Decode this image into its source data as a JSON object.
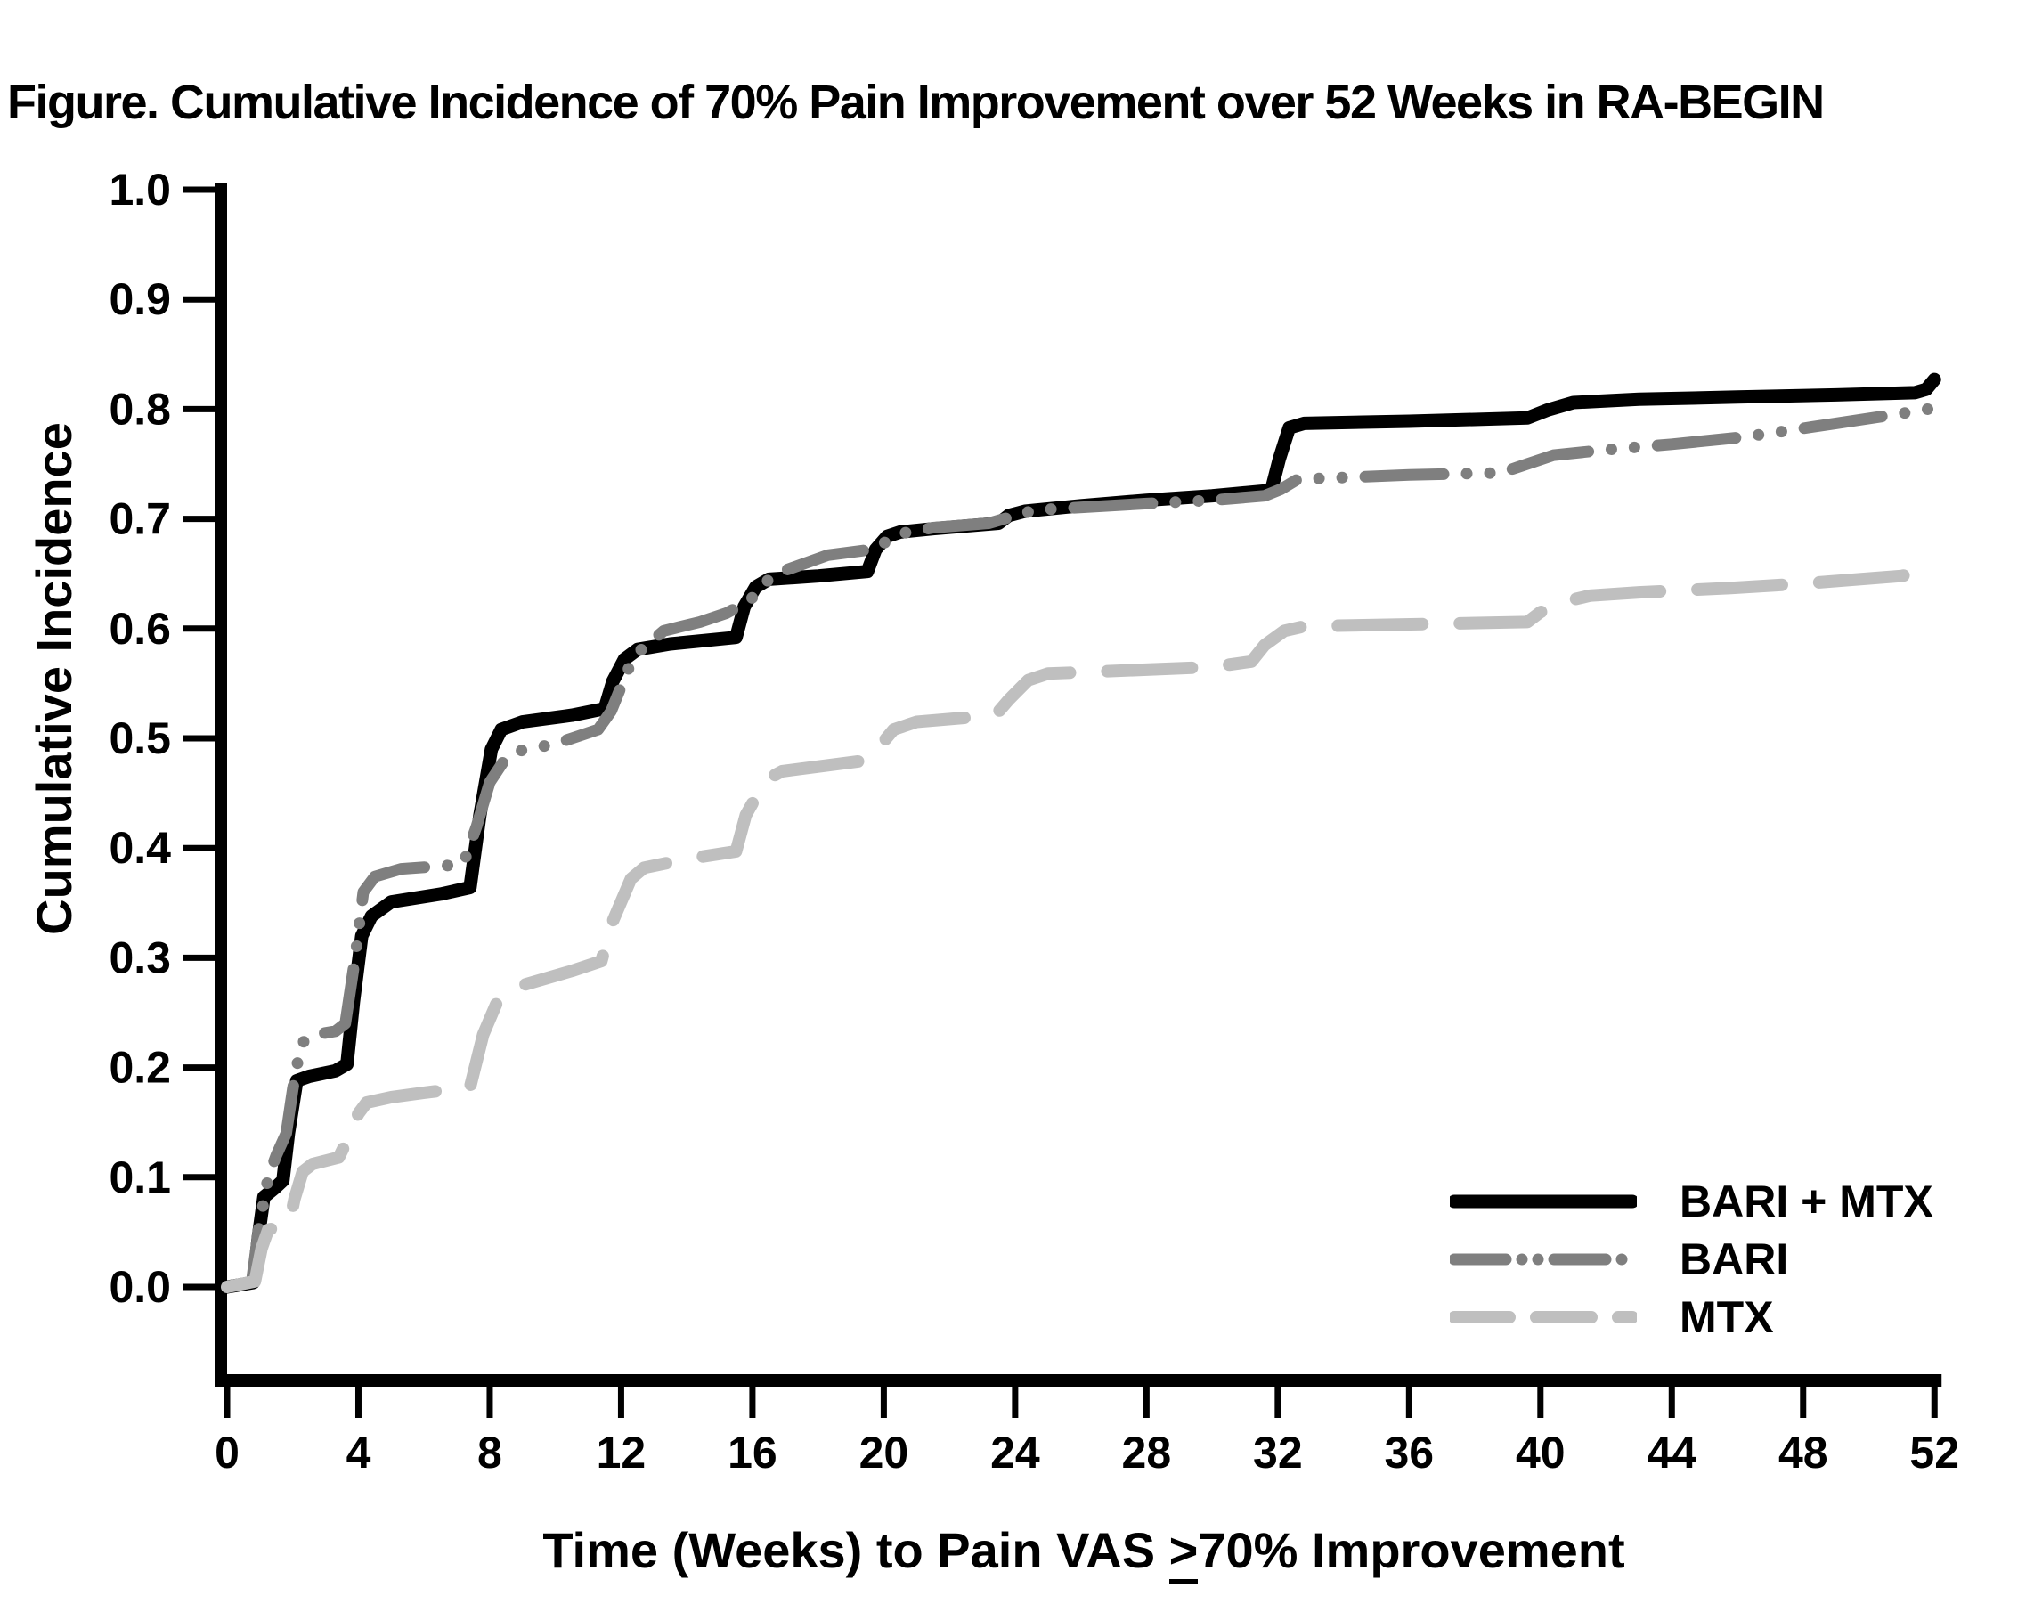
{
  "title": "Figure. Cumulative Incidence of 70% Pain Improvement over 52 Weeks in RA-BEGIN",
  "axes": {
    "y_label": "Cumulative Incidence",
    "x_label_prefix": "Time (Weeks) to Pain VAS ",
    "x_label_geq": ">",
    "x_label_suffix": "70% Improvement",
    "x_ticks": [
      "0",
      "4",
      "8",
      "12",
      "16",
      "20",
      "24",
      "28",
      "32",
      "36",
      "40",
      "44",
      "48",
      "52"
    ],
    "y_ticks": [
      "0.0",
      "0.1",
      "0.2",
      "0.3",
      "0.4",
      "0.5",
      "0.6",
      "0.7",
      "0.8",
      "0.9",
      "1.0"
    ]
  },
  "legend": {
    "items": [
      {
        "label": "BARI + MTX"
      },
      {
        "label": "BARI"
      },
      {
        "label": "MTX"
      }
    ]
  },
  "chart_data": {
    "type": "line",
    "subtype": "cumulative-incidence-step-curves",
    "title": "Figure. Cumulative Incidence of 70% Pain Improvement over 52 Weeks in RA-BEGIN",
    "xlabel": "Time (Weeks) to Pain VAS ≥70% Improvement",
    "ylabel": "Cumulative Incidence",
    "xlim": [
      0,
      52
    ],
    "ylim": [
      0.0,
      1.0
    ],
    "x_tick_values": [
      0,
      4,
      8,
      12,
      16,
      20,
      24,
      28,
      32,
      36,
      40,
      44,
      48,
      52
    ],
    "y_tick_values": [
      0.0,
      0.1,
      0.2,
      0.3,
      0.4,
      0.5,
      0.6,
      0.7,
      0.8,
      0.9,
      1.0
    ],
    "grid": false,
    "legend_position": "inside-lower-right",
    "series": [
      {
        "name": "BARI + MTX",
        "color": "#000000",
        "style": "solid",
        "points": [
          [
            0,
            0
          ],
          [
            0.8,
            0.004
          ],
          [
            0.95,
            0.045
          ],
          [
            1.12,
            0.082
          ],
          [
            1.45,
            0.09
          ],
          [
            1.7,
            0.097
          ],
          [
            1.87,
            0.14
          ],
          [
            2.12,
            0.188
          ],
          [
            2.5,
            0.192
          ],
          [
            3.3,
            0.197
          ],
          [
            3.65,
            0.203
          ],
          [
            3.85,
            0.26
          ],
          [
            4.1,
            0.32
          ],
          [
            4.4,
            0.338
          ],
          [
            5.0,
            0.351
          ],
          [
            6.5,
            0.358
          ],
          [
            7.4,
            0.364
          ],
          [
            7.7,
            0.43
          ],
          [
            8.05,
            0.49
          ],
          [
            8.35,
            0.508
          ],
          [
            9.0,
            0.515
          ],
          [
            10.5,
            0.521
          ],
          [
            11.5,
            0.527
          ],
          [
            11.75,
            0.552
          ],
          [
            12.1,
            0.572
          ],
          [
            12.5,
            0.581
          ],
          [
            13.5,
            0.586
          ],
          [
            15.5,
            0.592
          ],
          [
            15.75,
            0.62
          ],
          [
            16.1,
            0.638
          ],
          [
            16.5,
            0.645
          ],
          [
            18,
            0.648
          ],
          [
            19.5,
            0.652
          ],
          [
            19.75,
            0.672
          ],
          [
            20.1,
            0.684
          ],
          [
            20.5,
            0.688
          ],
          [
            21.5,
            0.691
          ],
          [
            23.5,
            0.696
          ],
          [
            23.8,
            0.703
          ],
          [
            24.3,
            0.707
          ],
          [
            26,
            0.712
          ],
          [
            28,
            0.717
          ],
          [
            30,
            0.721
          ],
          [
            31.8,
            0.726
          ],
          [
            32.05,
            0.755
          ],
          [
            32.35,
            0.783
          ],
          [
            32.8,
            0.787
          ],
          [
            36,
            0.789
          ],
          [
            39.6,
            0.792
          ],
          [
            40.2,
            0.799
          ],
          [
            41,
            0.806
          ],
          [
            43,
            0.809
          ],
          [
            46,
            0.811
          ],
          [
            49,
            0.813
          ],
          [
            51.4,
            0.815
          ],
          [
            51.75,
            0.818
          ],
          [
            52,
            0.827
          ]
        ]
      },
      {
        "name": "BARI",
        "color": "#7f7f7f",
        "style": "dash-dot-dot",
        "points": [
          [
            0,
            0
          ],
          [
            0.75,
            0.005
          ],
          [
            0.95,
            0.05
          ],
          [
            1.25,
            0.1
          ],
          [
            1.5,
            0.12
          ],
          [
            1.8,
            0.14
          ],
          [
            2.0,
            0.18
          ],
          [
            2.25,
            0.222
          ],
          [
            2.7,
            0.23
          ],
          [
            3.3,
            0.233
          ],
          [
            3.6,
            0.24
          ],
          [
            3.9,
            0.3
          ],
          [
            4.15,
            0.36
          ],
          [
            4.5,
            0.374
          ],
          [
            5.3,
            0.381
          ],
          [
            6.7,
            0.384
          ],
          [
            7.2,
            0.386
          ],
          [
            7.6,
            0.42
          ],
          [
            8.0,
            0.46
          ],
          [
            8.4,
            0.478
          ],
          [
            8.8,
            0.488
          ],
          [
            10.0,
            0.495
          ],
          [
            10.5,
            0.5
          ],
          [
            11.3,
            0.508
          ],
          [
            11.7,
            0.525
          ],
          [
            12.2,
            0.562
          ],
          [
            12.5,
            0.578
          ],
          [
            13.3,
            0.598
          ],
          [
            14.4,
            0.606
          ],
          [
            15.2,
            0.614
          ],
          [
            15.9,
            0.625
          ],
          [
            16.5,
            0.645
          ],
          [
            16.9,
            0.652
          ],
          [
            18.3,
            0.667
          ],
          [
            19.6,
            0.672
          ],
          [
            20.0,
            0.678
          ],
          [
            20.6,
            0.687
          ],
          [
            21.5,
            0.692
          ],
          [
            23.2,
            0.696
          ],
          [
            24.6,
            0.708
          ],
          [
            28,
            0.714
          ],
          [
            30,
            0.717
          ],
          [
            31.6,
            0.721
          ],
          [
            32.1,
            0.727
          ],
          [
            32.6,
            0.736
          ],
          [
            36,
            0.74
          ],
          [
            38.8,
            0.742
          ],
          [
            39.3,
            0.747
          ],
          [
            40.4,
            0.758
          ],
          [
            42,
            0.763
          ],
          [
            44,
            0.768
          ],
          [
            46,
            0.774
          ],
          [
            47,
            0.778
          ],
          [
            49,
            0.787
          ],
          [
            51,
            0.796
          ],
          [
            52,
            0.801
          ]
        ]
      },
      {
        "name": "MTX",
        "color": "#bfbfbf",
        "style": "long-dash",
        "points": [
          [
            0,
            0
          ],
          [
            0.85,
            0.005
          ],
          [
            1.05,
            0.035
          ],
          [
            1.25,
            0.052
          ],
          [
            1.9,
            0.058
          ],
          [
            2.05,
            0.08
          ],
          [
            2.3,
            0.105
          ],
          [
            2.6,
            0.112
          ],
          [
            3.4,
            0.118
          ],
          [
            3.6,
            0.13
          ],
          [
            4.0,
            0.158
          ],
          [
            4.25,
            0.168
          ],
          [
            5,
            0.173
          ],
          [
            6,
            0.177
          ],
          [
            7.4,
            0.182
          ],
          [
            7.8,
            0.23
          ],
          [
            8.3,
            0.265
          ],
          [
            9,
            0.275
          ],
          [
            10.5,
            0.288
          ],
          [
            11.4,
            0.297
          ],
          [
            11.7,
            0.33
          ],
          [
            12.3,
            0.372
          ],
          [
            12.7,
            0.382
          ],
          [
            14,
            0.39
          ],
          [
            15.5,
            0.397
          ],
          [
            15.8,
            0.43
          ],
          [
            16.4,
            0.462
          ],
          [
            16.9,
            0.47
          ],
          [
            19.5,
            0.48
          ],
          [
            19.8,
            0.49
          ],
          [
            20.3,
            0.508
          ],
          [
            21,
            0.515
          ],
          [
            23.4,
            0.521
          ],
          [
            23.8,
            0.535
          ],
          [
            24.4,
            0.553
          ],
          [
            25,
            0.559
          ],
          [
            30,
            0.565
          ],
          [
            31.2,
            0.57
          ],
          [
            31.6,
            0.585
          ],
          [
            32.2,
            0.598
          ],
          [
            32.8,
            0.602
          ],
          [
            39.6,
            0.606
          ],
          [
            40,
            0.615
          ],
          [
            40.8,
            0.625
          ],
          [
            41.5,
            0.63
          ],
          [
            43,
            0.633
          ],
          [
            45.8,
            0.637
          ],
          [
            48,
            0.641
          ],
          [
            51,
            0.648
          ],
          [
            51.6,
            0.652
          ],
          [
            52,
            0.663
          ]
        ]
      }
    ]
  }
}
